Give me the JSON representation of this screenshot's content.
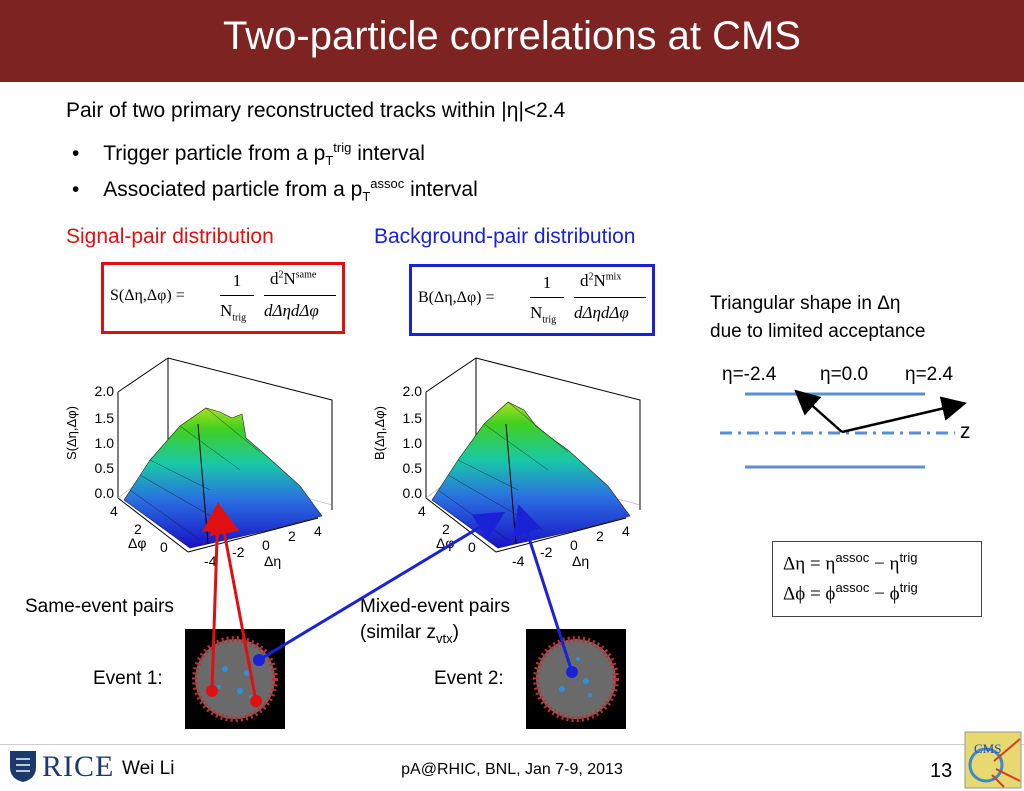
{
  "slide": {
    "title": "Two-particle correlations at CMS",
    "intro": "Pair of two primary reconstructed tracks within |η|<2.4",
    "bullets": [
      {
        "text": "Trigger particle from a p",
        "sub": "T",
        "sup": "trig",
        "tail": " interval"
      },
      {
        "text": "Associated particle from a p",
        "sub": "T",
        "sup": "assoc",
        "tail": " interval"
      }
    ],
    "signal_heading": "Signal-pair distribution",
    "background_heading": "Background-pair distribution",
    "signal_formula": {
      "lhs": "S(Δη,Δφ) =",
      "num": "1",
      "den": "N",
      "den_sub": "trig",
      "dnum": "d",
      "dnum_sup": "2",
      "dN": "N",
      "dN_sup": "same",
      "dden": "dΔηdΔφ"
    },
    "background_formula": {
      "lhs": "B(Δη,Δφ) =",
      "num": "1",
      "den": "N",
      "den_sub": "trig",
      "dnum": "d",
      "dnum_sup": "2",
      "dN": "N",
      "dN_sup": "mix",
      "dden": "dΔηdΔφ"
    },
    "triangle_note": [
      "Triangular shape in Δη",
      "due to limited acceptance"
    ],
    "eta_labels": [
      "η=-2.4",
      "η=0.0",
      "η=2.4"
    ],
    "z_label": "z",
    "plot_signal": {
      "zlabel": "S(Δη,Δφ)",
      "zticks": [
        "2.0",
        "1.5",
        "1.0",
        "0.5",
        "0.0"
      ],
      "phi_ticks": [
        "4",
        "2",
        "0"
      ],
      "phi_label": "Δφ",
      "eta_ticks": [
        "-4",
        "-2",
        "0",
        "2",
        "4"
      ],
      "eta_label": "Δη"
    },
    "plot_background": {
      "zlabel": "B(Δη,Δφ)",
      "zticks": [
        "2.0",
        "1.5",
        "1.0",
        "0.5",
        "0.0"
      ],
      "phi_ticks": [
        "4",
        "2",
        "0"
      ],
      "phi_label": "Δφ",
      "eta_ticks": [
        "-4",
        "-2",
        "0",
        "2",
        "4"
      ],
      "eta_label": "Δη"
    },
    "same_event": "Same-event pairs",
    "mixed_event": "Mixed-event pairs",
    "similar_z": {
      "text": "(similar z",
      "sub": "vtx",
      "tail": ")"
    },
    "event1": "Event 1:",
    "event2": "Event 2:",
    "definitions": [
      {
        "lhs": "Δη = η",
        "sup1": "assoc",
        "mid": " − η",
        "sup2": "trig"
      },
      {
        "lhs": "Δϕ = ϕ",
        "sup1": "assoc",
        "mid": " − ϕ",
        "sup2": "trig"
      }
    ],
    "footer": {
      "author": "Wei Li",
      "logo_text": "RICE",
      "conference": "pA@RHIC, BNL, Jan 7-9, 2013",
      "page": "13",
      "cms": "CMS"
    }
  },
  "colors": {
    "title_bg": "#7d2321",
    "signal": "#e01010",
    "background": "#1a22d8",
    "beam": "#5b8fd0"
  }
}
